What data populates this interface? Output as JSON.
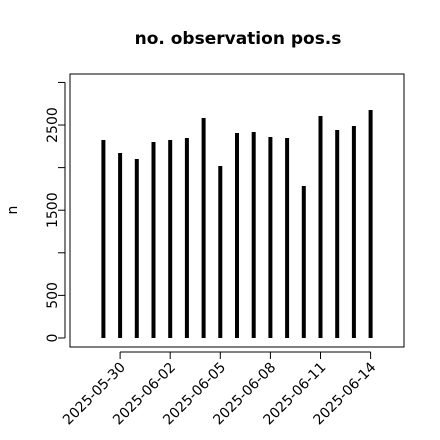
{
  "chart_data": {
    "type": "bar",
    "title": "no. observation pos.s",
    "y_label": "n",
    "x": [
      "2025-05-29",
      "2025-05-30",
      "2025-05-31",
      "2025-06-01",
      "2025-06-02",
      "2025-06-03",
      "2025-06-04",
      "2025-06-05",
      "2025-06-06",
      "2025-06-07",
      "2025-06-08",
      "2025-06-09",
      "2025-06-10",
      "2025-06-11",
      "2025-06-12",
      "2025-06-13",
      "2025-06-14"
    ],
    "values": [
      2324,
      2171,
      2101,
      2300,
      2324,
      2347,
      2582,
      2019,
      2406,
      2418,
      2359,
      2347,
      1784,
      2606,
      2441,
      2488,
      2676
    ],
    "color": "#000000",
    "xlim": [
      "2025-05-27",
      "2025-06-16"
    ],
    "xticks": [
      "2025-05-30",
      "2025-06-02",
      "2025-06-05",
      "2025-06-08",
      "2025-06-11",
      "2025-06-14"
    ],
    "highlight_tick": "2025-06-05",
    "highlight_color": "#228b22",
    "ylim": [
      -106,
      3099
    ],
    "yticks": [
      0,
      500,
      1500,
      2500
    ],
    "yticks_minor": [
      1000,
      2000,
      3000
    ]
  }
}
